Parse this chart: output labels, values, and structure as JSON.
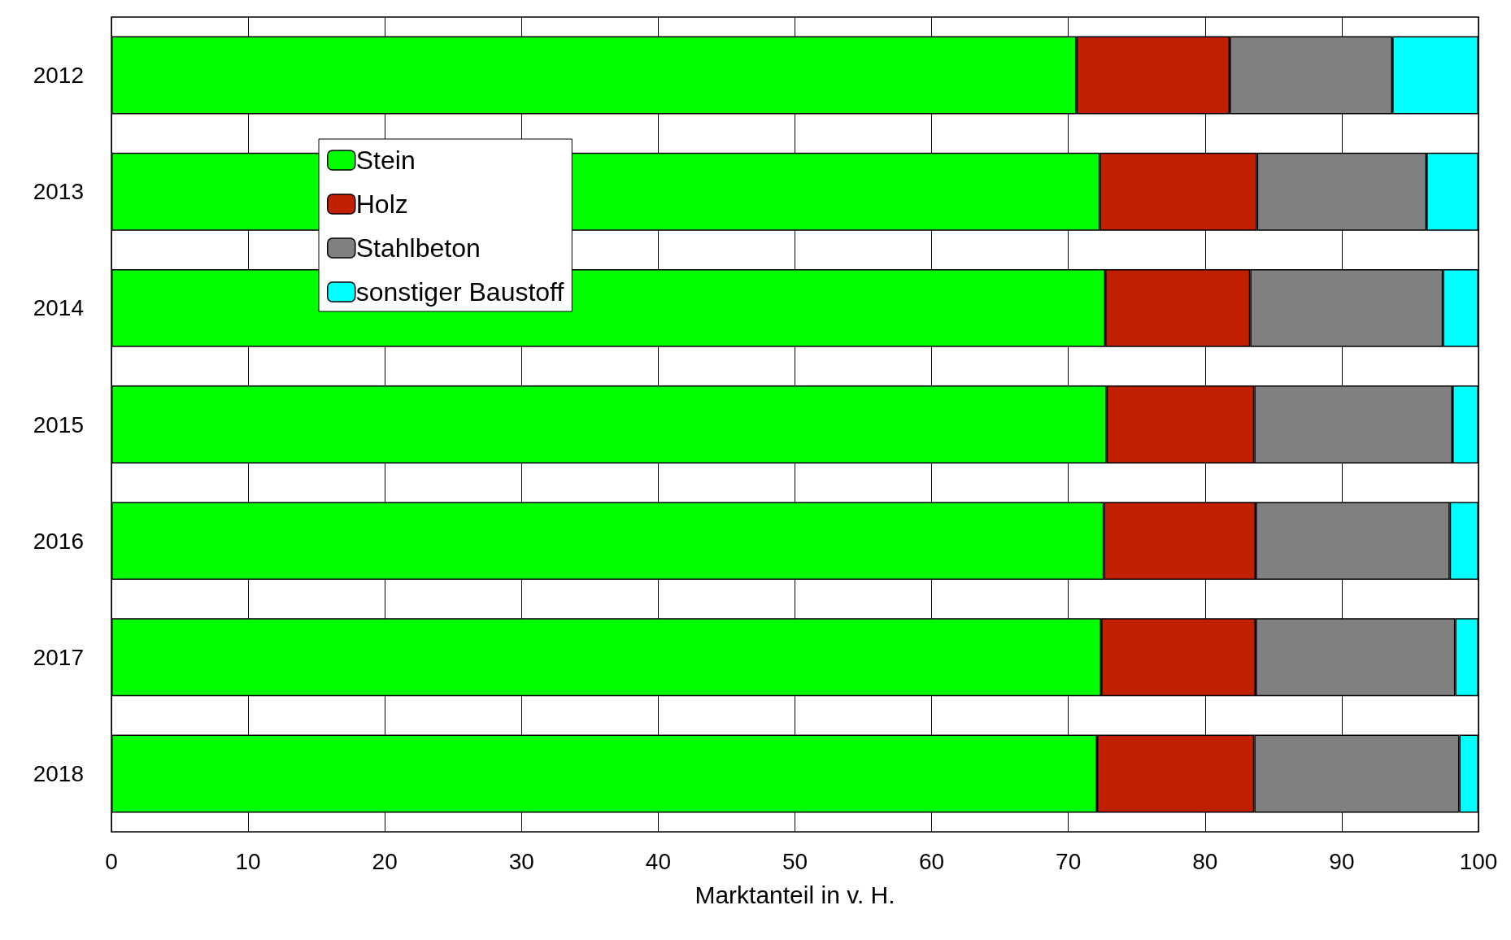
{
  "chart_data": {
    "type": "bar",
    "orientation": "horizontal",
    "stacked": true,
    "xlabel": "Marktanteil in v. H.",
    "categories": [
      "2012",
      "2013",
      "2014",
      "2015",
      "2016",
      "2017",
      "2018"
    ],
    "series": [
      {
        "name": "Stein",
        "color": "#00ff00",
        "values": [
          70.6,
          72.3,
          72.7,
          72.8,
          72.6,
          72.4,
          72.1
        ]
      },
      {
        "name": "Holz",
        "color": "#c01f00",
        "values": [
          11.2,
          11.5,
          10.6,
          10.8,
          11.1,
          11.3,
          11.5
        ]
      },
      {
        "name": "Stahlbeton",
        "color": "#808080",
        "values": [
          11.9,
          12.4,
          14.1,
          14.5,
          14.2,
          14.6,
          15.0
        ]
      },
      {
        "name": "sonstiger Baustoff",
        "color": "#00ffff",
        "values": [
          6.3,
          3.8,
          2.6,
          1.9,
          2.1,
          1.7,
          1.4
        ]
      }
    ],
    "xlim": [
      0,
      100
    ],
    "xticks": [
      0,
      10,
      20,
      30,
      40,
      50,
      60,
      70,
      80,
      90,
      100
    ],
    "grid": "x",
    "legend": "top left"
  }
}
